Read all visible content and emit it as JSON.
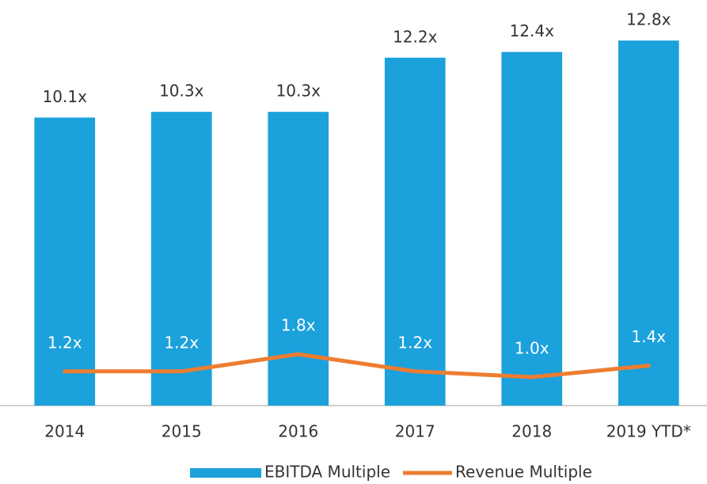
{
  "chart_data": {
    "type": "bar",
    "categories": [
      "2014",
      "2015",
      "2016",
      "2017",
      "2018",
      "2019 YTD*"
    ],
    "series": [
      {
        "name": "EBITDA Multiple",
        "type": "bar",
        "color": "#1ba1dc",
        "values": [
          10.1,
          10.3,
          10.3,
          12.2,
          12.4,
          12.8
        ],
        "value_labels": [
          "10.1x",
          "10.3x",
          "10.3x",
          "12.2x",
          "12.4x",
          "12.8x"
        ]
      },
      {
        "name": "Revenue Multiple",
        "type": "line",
        "color": "#ed7d31",
        "values": [
          1.2,
          1.2,
          1.8,
          1.2,
          1.0,
          1.4
        ],
        "value_labels": [
          "1.2x",
          "1.2x",
          "1.8x",
          "1.2x",
          "1.0x",
          "1.4x"
        ]
      }
    ],
    "ylim": [
      0,
      14
    ]
  }
}
